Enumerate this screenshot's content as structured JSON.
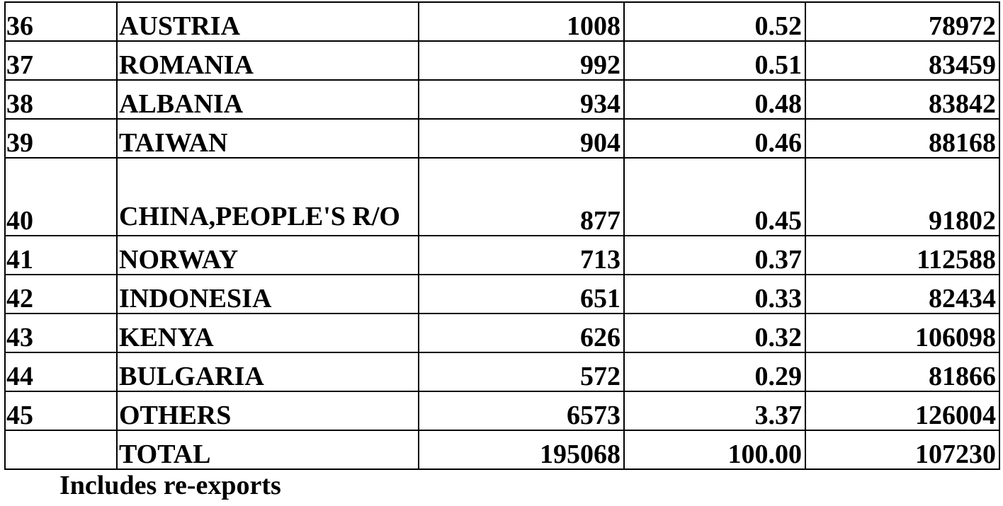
{
  "table": {
    "rows": [
      {
        "rank": "36",
        "country": "AUSTRIA",
        "value": "1008",
        "share": "0.52",
        "unit_value": "78972"
      },
      {
        "rank": "37",
        "country": "ROMANIA",
        "value": "992",
        "share": "0.51",
        "unit_value": "83459"
      },
      {
        "rank": "38",
        "country": "ALBANIA",
        "value": "934",
        "share": "0.48",
        "unit_value": "83842"
      },
      {
        "rank": "39",
        "country": "TAIWAN",
        "value": "904",
        "share": "0.46",
        "unit_value": "88168"
      },
      {
        "rank": "40",
        "country": "CHINA,PEOPLE'S R/O",
        "value": "877",
        "share": "0.45",
        "unit_value": "91802"
      },
      {
        "rank": "41",
        "country": "NORWAY",
        "value": "713",
        "share": "0.37",
        "unit_value": "112588"
      },
      {
        "rank": "42",
        "country": "INDONESIA",
        "value": "651",
        "share": "0.33",
        "unit_value": "82434"
      },
      {
        "rank": "43",
        "country": "KENYA",
        "value": "626",
        "share": "0.32",
        "unit_value": "106098"
      },
      {
        "rank": "44",
        "country": "BULGARIA",
        "value": "572",
        "share": "0.29",
        "unit_value": "81866"
      },
      {
        "rank": "45",
        "country": "OTHERS",
        "value": "6573",
        "share": "3.37",
        "unit_value": "126004"
      },
      {
        "rank": "",
        "country": "TOTAL",
        "value": "195068",
        "share": "100.00",
        "unit_value": "107230"
      }
    ]
  },
  "footnote": "Includes re-exports"
}
